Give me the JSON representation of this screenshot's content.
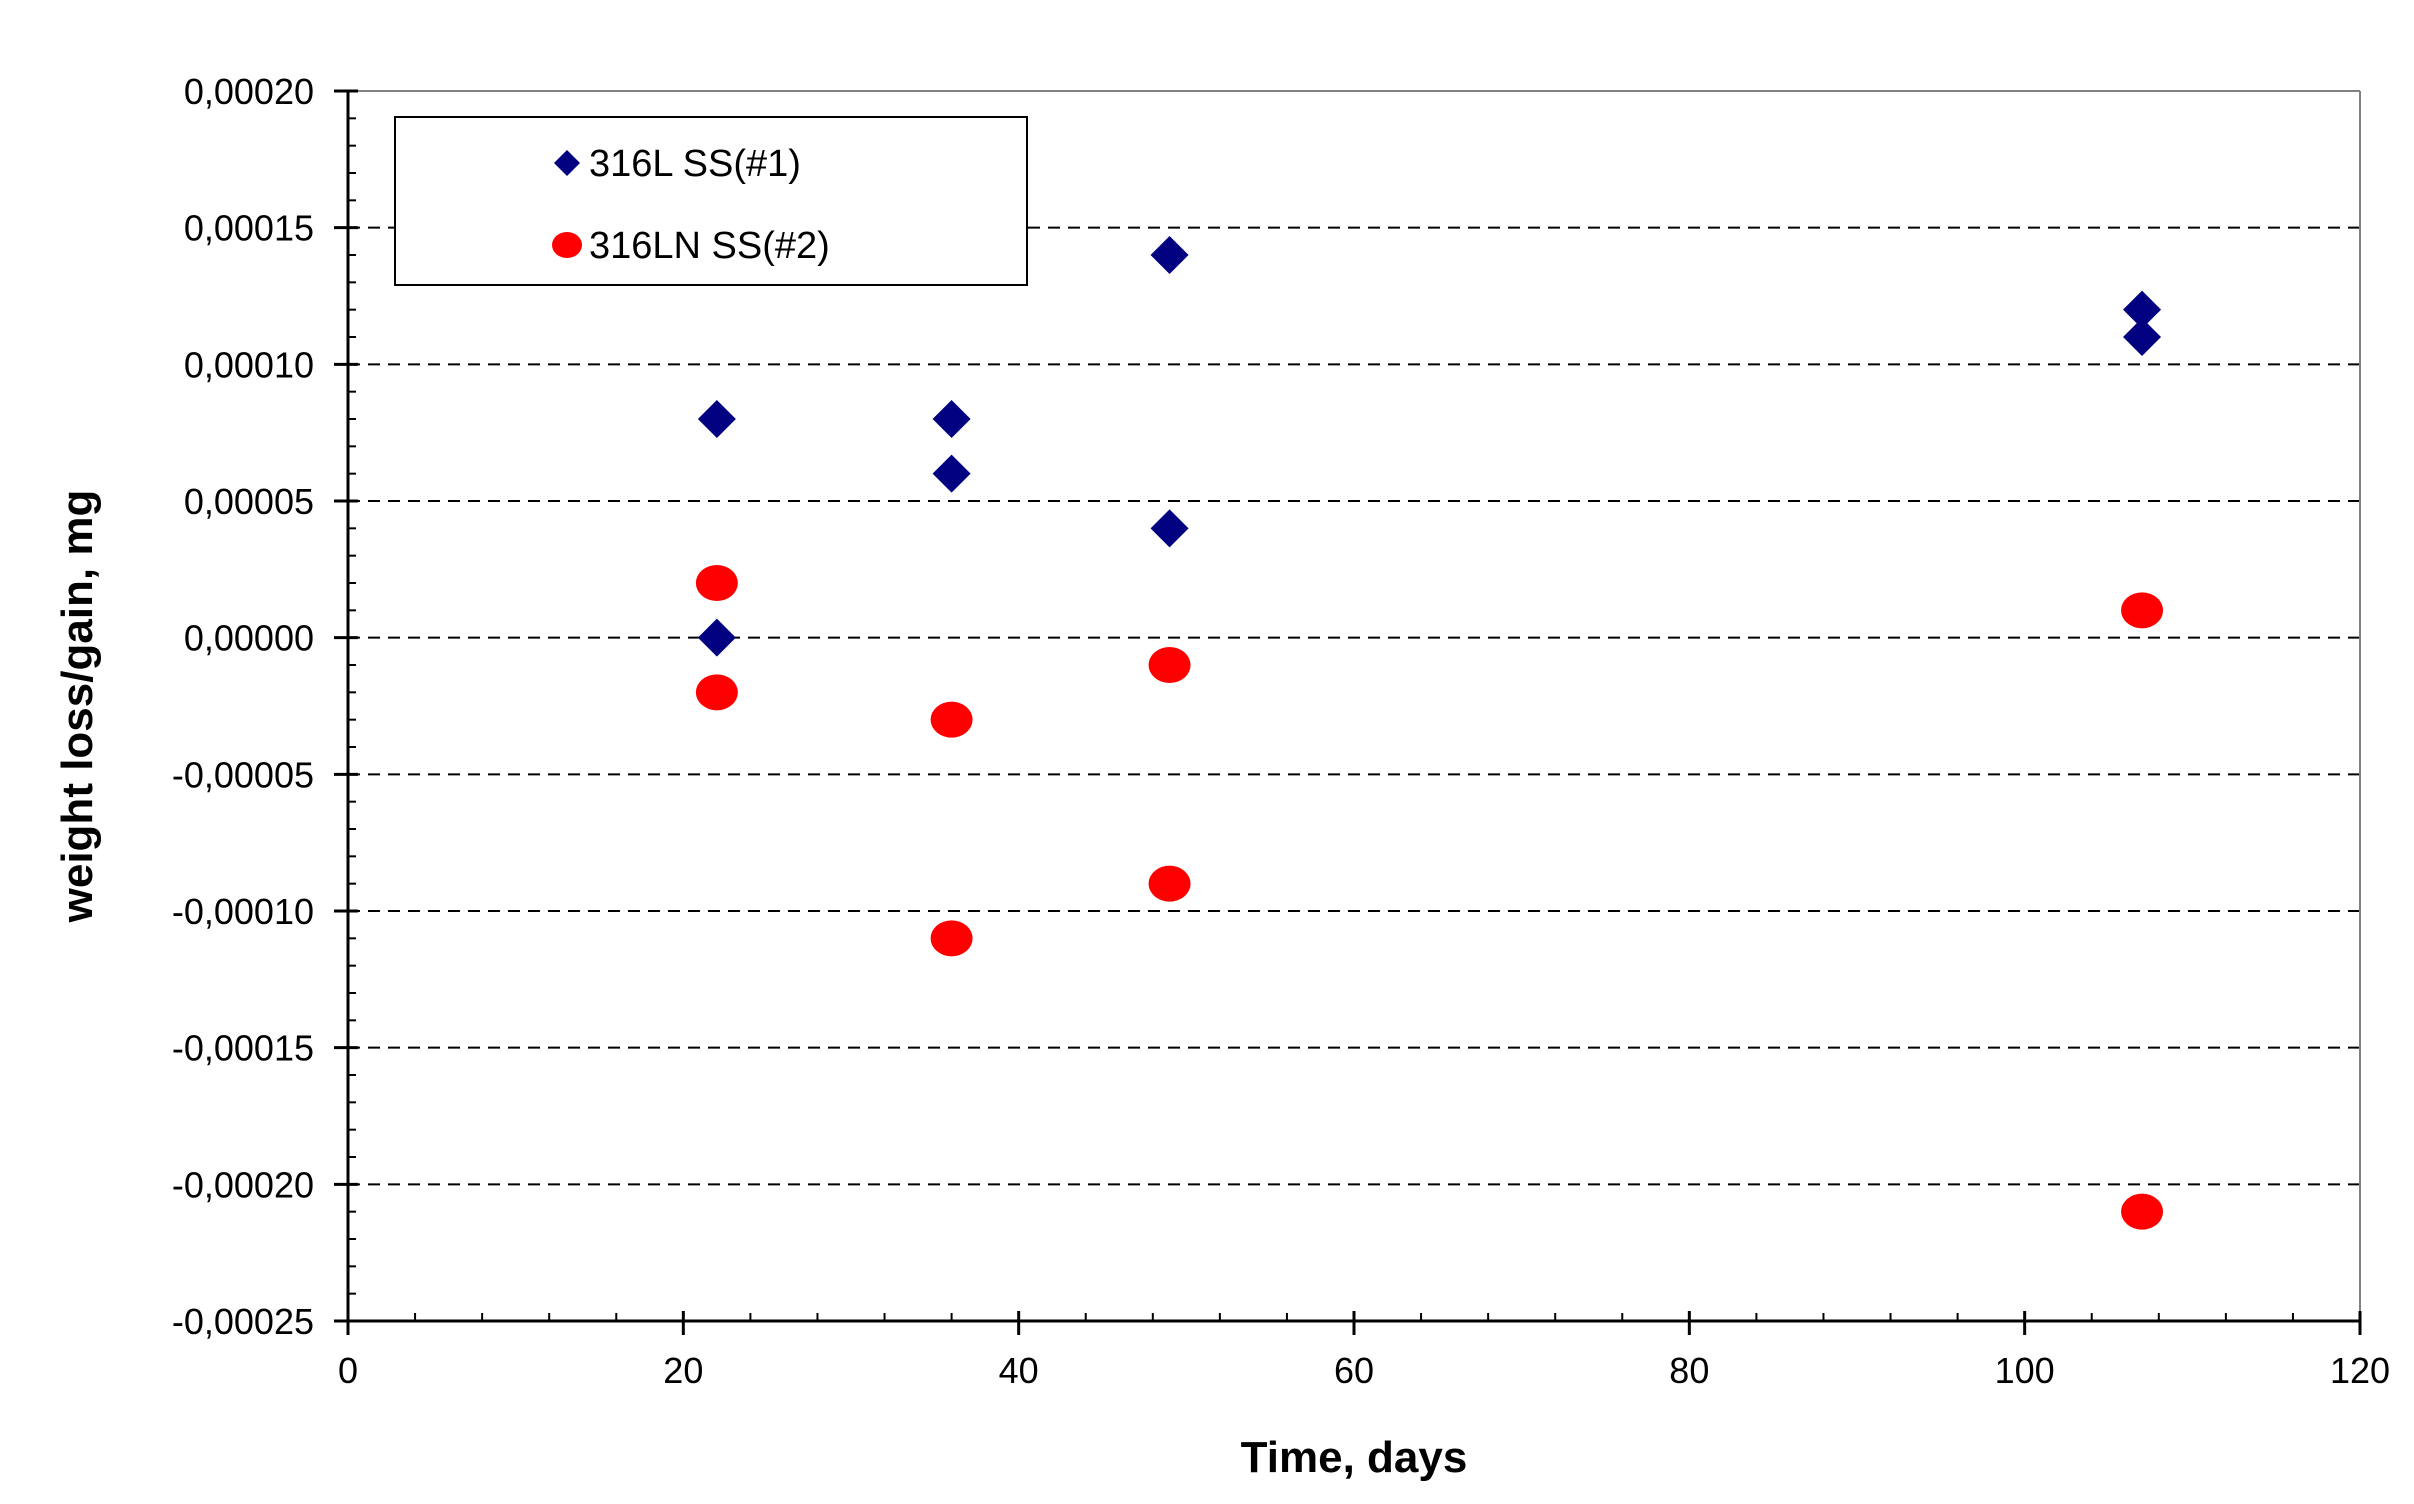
{
  "chart_data": {
    "type": "scatter",
    "title": "",
    "xlabel": "Time, days",
    "ylabel": "weight loss/gain, mg",
    "xlim": [
      0,
      120
    ],
    "ylim": [
      -0.00025,
      0.0002
    ],
    "x_ticks": [
      0,
      20,
      40,
      60,
      80,
      100,
      120
    ],
    "x_tick_labels": [
      "0",
      "20",
      "40",
      "60",
      "80",
      "100",
      "120"
    ],
    "y_ticks": [
      0.0002,
      0.00015,
      0.0001,
      5e-05,
      0,
      -5e-05,
      -0.0001,
      -0.00015,
      -0.0002,
      -0.00025
    ],
    "y_tick_labels": [
      "0,00020",
      "0,00015",
      "0,00010",
      "0,00005",
      "0,00000",
      "-0,00005",
      "-0,00010",
      "-0,00015",
      "-0,00020",
      "-0,00025"
    ],
    "grid": "horizontal-dashed",
    "legend_position": "top-left",
    "series": [
      {
        "name": "316L SS(#1)",
        "marker": "diamond",
        "color": "#000080",
        "points": [
          {
            "x": 22,
            "y": 8e-05
          },
          {
            "x": 22,
            "y": 0.0
          },
          {
            "x": 36,
            "y": 8e-05
          },
          {
            "x": 36,
            "y": 6e-05
          },
          {
            "x": 49,
            "y": 0.00014
          },
          {
            "x": 49,
            "y": 4e-05
          },
          {
            "x": 107,
            "y": 0.00012
          },
          {
            "x": 107,
            "y": 0.00011
          }
        ]
      },
      {
        "name": "316LN SS(#2)",
        "marker": "circle",
        "color": "#ff0000",
        "points": [
          {
            "x": 22,
            "y": 2e-05
          },
          {
            "x": 22,
            "y": -2e-05
          },
          {
            "x": 36,
            "y": -3e-05
          },
          {
            "x": 36,
            "y": -0.00011
          },
          {
            "x": 49,
            "y": -1e-05
          },
          {
            "x": 49,
            "y": -9e-05
          },
          {
            "x": 107,
            "y": 1e-05
          },
          {
            "x": 107,
            "y": -0.00021
          }
        ]
      }
    ]
  }
}
